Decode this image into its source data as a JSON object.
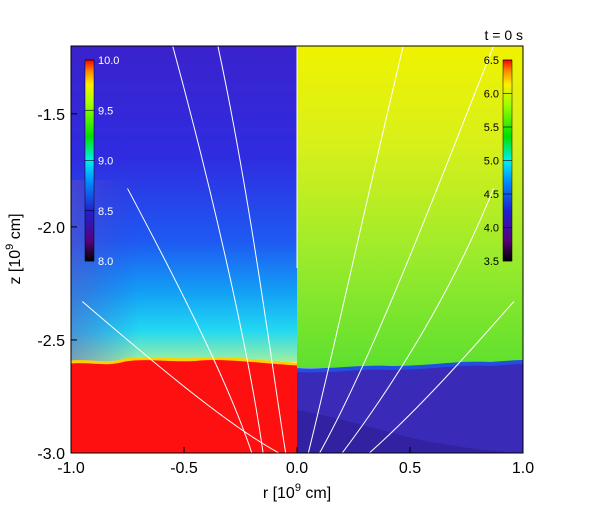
{
  "chart_data": {
    "type": "heatmap",
    "time_label": "t = 0 s",
    "xlabel": "r [10",
    "xlabel_exp": "9",
    "xlabel_unit": " cm]",
    "ylabel": "z [10",
    "ylabel_exp": "9",
    "ylabel_unit": " cm]",
    "xlim": [
      -1.0,
      1.0
    ],
    "ylim": [
      -3.0,
      -1.2
    ],
    "x_ticks": [
      {
        "value": -1.0,
        "label": "-1.0"
      },
      {
        "value": -0.5,
        "label": "-0.5"
      },
      {
        "value": 0.0,
        "label": "0.0"
      },
      {
        "value": 0.5,
        "label": "0.5"
      },
      {
        "value": 1.0,
        "label": "1.0"
      }
    ],
    "y_ticks": [
      {
        "value": -1.5,
        "label": "-1.5"
      },
      {
        "value": -2.0,
        "label": "-2.0"
      },
      {
        "value": -2.5,
        "label": "-2.5"
      },
      {
        "value": -3.0,
        "label": "-3.0"
      }
    ],
    "left_colorbar": {
      "range": [
        8.0,
        10.0
      ],
      "ticks": [
        {
          "value": 10.0,
          "label": "10.0"
        },
        {
          "value": 9.5,
          "label": "9.5"
        },
        {
          "value": 9.0,
          "label": "9.0"
        },
        {
          "value": 8.5,
          "label": "8.5"
        },
        {
          "value": 8.0,
          "label": "8.0"
        }
      ]
    },
    "right_colorbar": {
      "range": [
        3.5,
        6.5
      ],
      "ticks": [
        {
          "value": 6.5,
          "label": "6.5"
        },
        {
          "value": 6.0,
          "label": "6.0"
        },
        {
          "value": 5.5,
          "label": "5.5"
        },
        {
          "value": 5.0,
          "label": "5.0"
        },
        {
          "value": 4.5,
          "label": "4.5"
        },
        {
          "value": 4.0,
          "label": "4.0"
        },
        {
          "value": 3.5,
          "label": "3.5"
        }
      ]
    },
    "transition_region_z": -2.62,
    "field_lines": [
      {
        "points": [
          [
            -0.95,
            -2.33
          ],
          [
            -0.6,
            -2.63
          ],
          [
            -0.3,
            -2.88
          ],
          [
            -0.08,
            -3.0
          ]
        ]
      },
      {
        "points": [
          [
            -0.75,
            -1.83
          ],
          [
            -0.5,
            -2.3
          ],
          [
            -0.3,
            -2.7
          ],
          [
            -0.2,
            -3.0
          ]
        ]
      },
      {
        "points": [
          [
            -0.55,
            -1.2
          ],
          [
            -0.4,
            -1.75
          ],
          [
            -0.22,
            -2.5
          ],
          [
            -0.15,
            -3.0
          ]
        ]
      },
      {
        "points": [
          [
            -0.35,
            -1.2
          ],
          [
            -0.2,
            -1.9
          ],
          [
            -0.1,
            -2.7
          ],
          [
            -0.05,
            -3.0
          ]
        ]
      },
      {
        "points": [
          [
            0.05,
            -3.0
          ],
          [
            0.15,
            -2.6
          ],
          [
            0.28,
            -2.0
          ],
          [
            0.47,
            -1.2
          ]
        ]
      },
      {
        "points": [
          [
            0.1,
            -3.0
          ],
          [
            0.35,
            -2.55
          ],
          [
            0.65,
            -1.75
          ],
          [
            0.87,
            -1.2
          ]
        ]
      },
      {
        "points": [
          [
            0.2,
            -3.0
          ],
          [
            0.5,
            -2.6
          ],
          [
            0.72,
            -2.2
          ],
          [
            0.87,
            -1.83
          ]
        ]
      },
      {
        "points": [
          [
            0.32,
            -3.0
          ],
          [
            0.6,
            -2.75
          ],
          [
            0.85,
            -2.45
          ],
          [
            0.96,
            -2.33
          ]
        ]
      }
    ]
  }
}
